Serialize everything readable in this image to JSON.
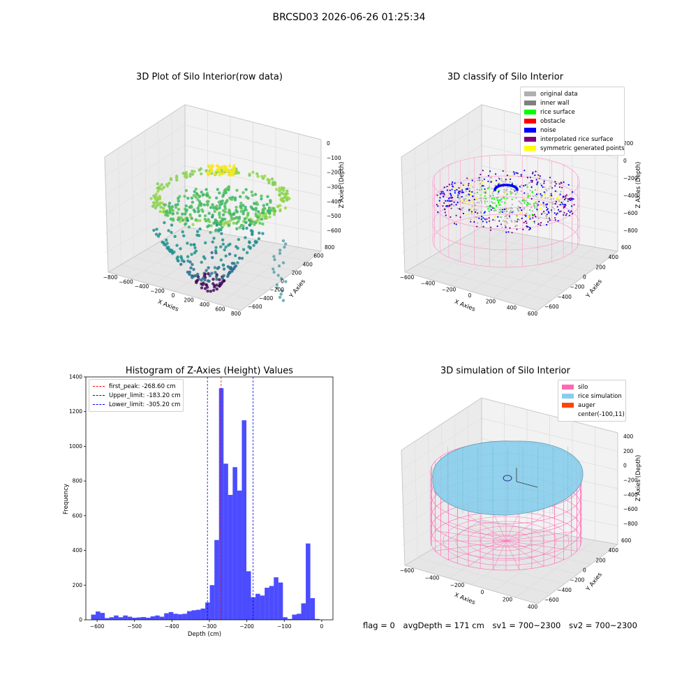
{
  "figure": {
    "suptitle": "BRCSD03 2026-06-26 01:25:34"
  },
  "panel_titles": {
    "raw": "3D Plot of Silo Interior(row data)",
    "classify": "3D classify of Silo Interior",
    "histogram": "Histogram of Z-Axies (Height) Values",
    "simulation": "3D simulation of Silo Interior"
  },
  "axes_3d": {
    "raw": {
      "xlabel": "X Axies",
      "ylabel": "Y Axies",
      "zlabel": "Z Axies (Depth)",
      "xticks": [
        "−800",
        "−600",
        "−400",
        "−200",
        "0",
        "200",
        "400",
        "600",
        "800"
      ],
      "yticks": [
        "−600",
        "−400",
        "−200",
        "0",
        "200",
        "400",
        "600",
        "800"
      ],
      "zticks": [
        "0",
        "−100",
        "−200",
        "−300",
        "−400",
        "−500",
        "−600"
      ]
    },
    "classify": {
      "xlabel": "X Axies",
      "ylabel": "Y Axies",
      "zlabel": "Z Axies (Depth)",
      "xticks": [
        "−600",
        "−400",
        "−200",
        "0",
        "200",
        "400",
        "600"
      ],
      "yticks": [
        "−600",
        "−400",
        "−200",
        "0",
        "200",
        "400",
        "600"
      ],
      "zticks": [
        "200",
        "0",
        "−200",
        "−400",
        "−600",
        "−800"
      ]
    },
    "simulation": {
      "xlabel": "X Axies",
      "ylabel": "Y Axies",
      "zlabel": "Z Axies (Depth)",
      "xticks": [
        "−600",
        "−400",
        "−200",
        "0",
        "200",
        "400"
      ],
      "yticks": [
        "−600",
        "−400",
        "−200",
        "0",
        "200",
        "400",
        "600"
      ],
      "zticks": [
        "400",
        "200",
        "0",
        "−200",
        "−400",
        "−600",
        "−800"
      ]
    }
  },
  "legends": {
    "classify": [
      {
        "label": "original data",
        "color": "#b0b0b0"
      },
      {
        "label": "inner wall",
        "color": "#808080"
      },
      {
        "label": "rice surface",
        "color": "#00ff00"
      },
      {
        "label": "obstacle",
        "color": "#ff0000"
      },
      {
        "label": "noise",
        "color": "#0000ff"
      },
      {
        "label": "interpolated rice surface",
        "color": "#800080"
      },
      {
        "label": "symmetric generated points",
        "color": "#ffff00"
      }
    ],
    "simulation": [
      {
        "label": "silo",
        "color": "#ff69b4"
      },
      {
        "label": "rice simulation",
        "color": "#87ceeb"
      },
      {
        "label": "auger",
        "color": "#ff4500"
      },
      {
        "label": "center(-100,11)",
        "color": ""
      }
    ],
    "histogram": [
      {
        "label": "first_peak: -268.60 cm",
        "color": "#ff0000"
      },
      {
        "label": "Upper_limit: -183.20 cm",
        "color": "#0000ff"
      },
      {
        "label": "Lower_limit: -305.20 cm",
        "color": "#0000ff"
      }
    ]
  },
  "status": {
    "flag": "flag = 0",
    "avg_depth": "avgDepth = 171 cm",
    "sv1": "sv1 = 700~2300",
    "sv2": "sv2 = 700~2300"
  },
  "chart_data": {
    "type": "bar",
    "title": "Histogram of Z-Axies (Height) Values",
    "xlabel": "Depth (cm)",
    "ylabel": "Frequency",
    "xlim": [
      -630,
      30
    ],
    "ylim": [
      0,
      1400
    ],
    "xticks": [
      -600,
      -500,
      -400,
      -300,
      -200,
      -100,
      0
    ],
    "yticks": [
      0,
      200,
      400,
      600,
      800,
      1000,
      1200,
      1400
    ],
    "bar_color": "#0000ff",
    "bin_width": 12.2,
    "bin_start": -616,
    "values": [
      30,
      48,
      40,
      10,
      15,
      25,
      15,
      25,
      18,
      12,
      14,
      16,
      12,
      20,
      25,
      18,
      38,
      45,
      35,
      32,
      35,
      50,
      55,
      58,
      65,
      100,
      200,
      460,
      1335,
      900,
      720,
      880,
      745,
      1150,
      280,
      130,
      150,
      140,
      185,
      195,
      245,
      215,
      15,
      5,
      30,
      35,
      95,
      440,
      125,
      5
    ],
    "vlines": [
      {
        "x": -268.6,
        "color": "#ff0000",
        "label": "first_peak: -268.60 cm"
      },
      {
        "x": -183.2,
        "color": "#0000ff",
        "label": "Upper_limit: -183.20 cm"
      },
      {
        "x": -305.2,
        "color": "#0000ff",
        "label": "Lower_limit: -305.20 cm"
      }
    ],
    "legend_position": "upper-left",
    "grid": false
  }
}
